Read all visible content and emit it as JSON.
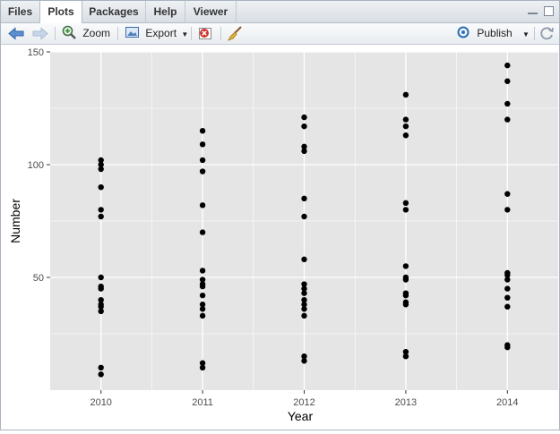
{
  "tabs": [
    {
      "label": "Files",
      "active": false
    },
    {
      "label": "Plots",
      "active": true
    },
    {
      "label": "Packages",
      "active": false
    },
    {
      "label": "Help",
      "active": false
    },
    {
      "label": "Viewer",
      "active": false
    }
  ],
  "toolbar": {
    "back_icon": "arrow-left-icon",
    "forward_icon": "arrow-right-icon",
    "zoom_label": "Zoom",
    "export_label": "Export",
    "remove_icon": "remove-plot-icon",
    "clear_icon": "broom-icon",
    "publish_label": "Publish",
    "refresh_icon": "refresh-icon"
  },
  "colors": {
    "panel_bg": "#e5e5e5",
    "grid": "#ffffff",
    "point": "#000000",
    "accent": "#2a6fb5"
  },
  "chart_data": {
    "type": "scatter",
    "xlabel": "Year",
    "ylabel": "Number",
    "x_ticks": [
      "2010",
      "2011",
      "2012",
      "2013",
      "2014"
    ],
    "y_ticks": [
      50,
      100,
      150
    ],
    "ylim": [
      0,
      150
    ],
    "grid": true,
    "legend": "none",
    "points": [
      {
        "x": "2010",
        "ys": [
          102,
          100,
          98,
          90,
          80,
          77,
          50,
          46,
          45,
          40,
          38,
          37,
          35,
          10,
          7
        ]
      },
      {
        "x": "2011",
        "ys": [
          115,
          109,
          102,
          97,
          82,
          70,
          53,
          49,
          47,
          46,
          42,
          38,
          36,
          33,
          12,
          10
        ]
      },
      {
        "x": "2012",
        "ys": [
          121,
          117,
          108,
          106,
          85,
          77,
          58,
          47,
          45,
          43,
          40,
          38,
          36,
          33,
          15,
          13
        ]
      },
      {
        "x": "2013",
        "ys": [
          131,
          120,
          117,
          113,
          83,
          80,
          55,
          50,
          49,
          43,
          42,
          39,
          38,
          17,
          15
        ]
      },
      {
        "x": "2014",
        "ys": [
          144,
          137,
          127,
          120,
          87,
          80,
          52,
          51,
          49,
          45,
          41,
          37,
          20,
          19
        ]
      }
    ]
  }
}
